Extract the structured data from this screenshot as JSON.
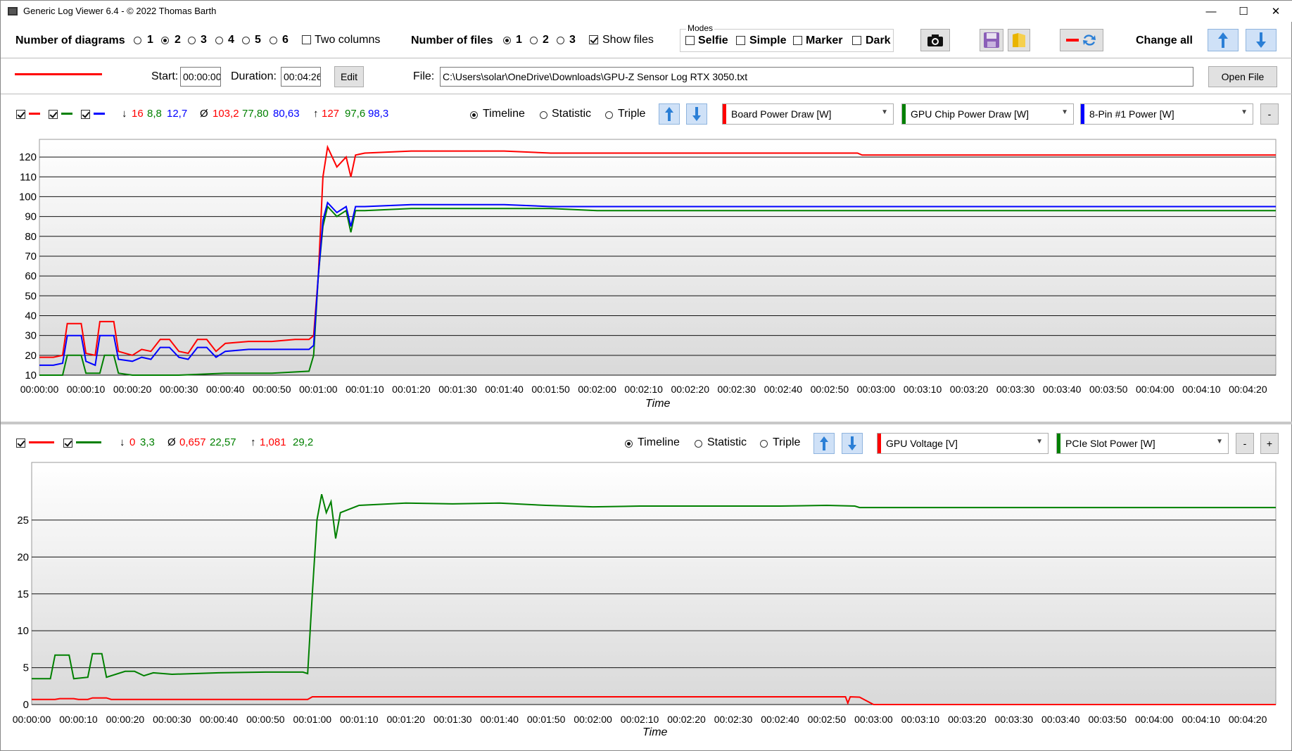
{
  "window": {
    "title": "Generic Log Viewer 6.4 - © 2022 Thomas Barth",
    "minimize": "—",
    "maximize": "☐",
    "close": "✕"
  },
  "toolbar": {
    "num_diagrams_label": "Number of diagrams",
    "diagram_options": [
      "1",
      "2",
      "3",
      "4",
      "5",
      "6"
    ],
    "diagram_selected": "2",
    "two_columns_label": "Two columns",
    "num_files_label": "Number of files",
    "file_options": [
      "1",
      "2",
      "3"
    ],
    "file_selected": "1",
    "show_files_label": "Show files",
    "modes_title": "Modes",
    "modes": [
      "Selfie",
      "Simple",
      "Marker",
      "Dark"
    ],
    "change_all_label": "Change all"
  },
  "file_row": {
    "start_label": "Start:",
    "start_value": "00:00:00",
    "duration_label": "Duration:",
    "duration_value": "00:04:26",
    "edit_label": "Edit",
    "file_label": "File:",
    "file_path": "C:\\Users\\solar\\OneDrive\\Downloads\\GPU-Z Sensor Log RTX 3050.txt",
    "open_file_label": "Open File",
    "line_color": "#ff0000"
  },
  "colors": {
    "red": "#ff0000",
    "green": "#008000",
    "blue": "#0000ff"
  },
  "diagram1": {
    "stats_min": [
      "16",
      "8,8",
      "12,7"
    ],
    "stats_avg": [
      "103,2",
      "77,80",
      "80,63"
    ],
    "stats_max": [
      "127",
      "97,6",
      "98,3"
    ],
    "min_icon": "↓",
    "avg_icon": "Ø",
    "max_icon": "↑",
    "view_modes": [
      "Timeline",
      "Statistic",
      "Triple"
    ],
    "view_selected": "Timeline",
    "sensors": [
      "Board Power Draw [W]",
      "GPU Chip Power Draw [W]",
      "8-Pin #1 Power [W]"
    ],
    "minus_label": "-",
    "xlabel": "Time"
  },
  "diagram2": {
    "stats_min": [
      "0",
      "3,3"
    ],
    "stats_avg": [
      "0,657",
      "22,57"
    ],
    "stats_max": [
      "1,081",
      "29,2"
    ],
    "min_icon": "↓",
    "avg_icon": "Ø",
    "max_icon": "↑",
    "view_modes": [
      "Timeline",
      "Statistic",
      "Triple"
    ],
    "view_selected": "Timeline",
    "sensors": [
      "GPU Voltage [V]",
      "PCIe Slot Power [W]"
    ],
    "minus_label": "-",
    "plus_label": "+",
    "xlabel": "Time"
  },
  "chart_data": [
    {
      "type": "line",
      "xlabel": "Time",
      "ylabel": "",
      "x_ticks": [
        "00:00:00",
        "00:00:10",
        "00:00:20",
        "00:00:30",
        "00:00:40",
        "00:00:50",
        "00:01:00",
        "00:01:10",
        "00:01:20",
        "00:01:30",
        "00:01:40",
        "00:01:50",
        "00:02:00",
        "00:02:10",
        "00:02:20",
        "00:02:30",
        "00:02:40",
        "00:02:50",
        "00:03:00",
        "00:03:10",
        "00:03:20",
        "00:03:30",
        "00:03:40",
        "00:03:50",
        "00:04:00",
        "00:04:10",
        "00:04:20"
      ],
      "y_ticks": [
        10,
        20,
        30,
        40,
        50,
        60,
        70,
        80,
        90,
        100,
        110,
        120
      ],
      "xlim_seconds": [
        0,
        266
      ],
      "ylim": [
        10,
        125
      ],
      "grid": true,
      "series": [
        {
          "name": "Board Power Draw [W]",
          "color": "#ff0000",
          "points": [
            [
              0,
              19
            ],
            [
              3,
              19
            ],
            [
              5,
              20
            ],
            [
              6,
              36
            ],
            [
              9,
              36
            ],
            [
              10,
              21
            ],
            [
              12,
              20
            ],
            [
              13,
              37
            ],
            [
              16,
              37
            ],
            [
              17,
              22
            ],
            [
              20,
              20
            ],
            [
              22,
              23
            ],
            [
              24,
              22
            ],
            [
              26,
              28
            ],
            [
              28,
              28
            ],
            [
              30,
              22
            ],
            [
              32,
              21
            ],
            [
              34,
              28
            ],
            [
              36,
              28
            ],
            [
              38,
              22
            ],
            [
              40,
              26
            ],
            [
              45,
              27
            ],
            [
              50,
              27
            ],
            [
              55,
              28
            ],
            [
              58,
              28
            ],
            [
              59,
              30
            ],
            [
              60,
              60
            ],
            [
              61,
              110
            ],
            [
              62,
              125
            ],
            [
              64,
              115
            ],
            [
              66,
              120
            ],
            [
              67,
              110
            ],
            [
              68,
              121
            ],
            [
              70,
              122
            ],
            [
              80,
              123
            ],
            [
              90,
              123
            ],
            [
              100,
              123
            ],
            [
              110,
              122
            ],
            [
              120,
              122
            ],
            [
              130,
              122
            ],
            [
              140,
              122
            ],
            [
              150,
              122
            ],
            [
              160,
              122
            ],
            [
              170,
              122
            ],
            [
              176,
              122
            ],
            [
              177,
              121
            ],
            [
              266,
              121
            ]
          ]
        },
        {
          "name": "GPU Chip Power Draw [W]",
          "color": "#008000",
          "points": [
            [
              0,
              10
            ],
            [
              5,
              10
            ],
            [
              6,
              20
            ],
            [
              9,
              20
            ],
            [
              10,
              11
            ],
            [
              13,
              11
            ],
            [
              14,
              20
            ],
            [
              16,
              20
            ],
            [
              17,
              11
            ],
            [
              20,
              10
            ],
            [
              30,
              10
            ],
            [
              40,
              11
            ],
            [
              50,
              11
            ],
            [
              58,
              12
            ],
            [
              59,
              20
            ],
            [
              60,
              60
            ],
            [
              61,
              85
            ],
            [
              62,
              95
            ],
            [
              64,
              90
            ],
            [
              66,
              93
            ],
            [
              67,
              82
            ],
            [
              68,
              93
            ],
            [
              70,
              93
            ],
            [
              80,
              94
            ],
            [
              90,
              94
            ],
            [
              100,
              94
            ],
            [
              110,
              94
            ],
            [
              120,
              93
            ],
            [
              130,
              93
            ],
            [
              140,
              93
            ],
            [
              150,
              93
            ],
            [
              160,
              93
            ],
            [
              170,
              93
            ],
            [
              176,
              93
            ],
            [
              177,
              93
            ],
            [
              266,
              93
            ]
          ]
        },
        {
          "name": "8-Pin #1 Power [W]",
          "color": "#0000ff",
          "points": [
            [
              0,
              15
            ],
            [
              3,
              15
            ],
            [
              5,
              16
            ],
            [
              6,
              30
            ],
            [
              9,
              30
            ],
            [
              10,
              17
            ],
            [
              12,
              15
            ],
            [
              13,
              30
            ],
            [
              16,
              30
            ],
            [
              17,
              18
            ],
            [
              20,
              17
            ],
            [
              22,
              19
            ],
            [
              24,
              18
            ],
            [
              26,
              24
            ],
            [
              28,
              24
            ],
            [
              30,
              19
            ],
            [
              32,
              18
            ],
            [
              34,
              24
            ],
            [
              36,
              24
            ],
            [
              38,
              19
            ],
            [
              40,
              22
            ],
            [
              45,
              23
            ],
            [
              50,
              23
            ],
            [
              55,
              23
            ],
            [
              58,
              23
            ],
            [
              59,
              25
            ],
            [
              60,
              60
            ],
            [
              61,
              88
            ],
            [
              62,
              97
            ],
            [
              64,
              92
            ],
            [
              66,
              95
            ],
            [
              67,
              85
            ],
            [
              68,
              95
            ],
            [
              70,
              95
            ],
            [
              80,
              96
            ],
            [
              90,
              96
            ],
            [
              100,
              96
            ],
            [
              110,
              95
            ],
            [
              120,
              95
            ],
            [
              130,
              95
            ],
            [
              140,
              95
            ],
            [
              150,
              95
            ],
            [
              160,
              95
            ],
            [
              170,
              95
            ],
            [
              176,
              95
            ],
            [
              177,
              95
            ],
            [
              266,
              95
            ]
          ]
        }
      ]
    },
    {
      "type": "line",
      "xlabel": "Time",
      "ylabel": "",
      "x_ticks": [
        "00:00:00",
        "00:00:10",
        "00:00:20",
        "00:00:30",
        "00:00:40",
        "00:00:50",
        "00:01:00",
        "00:01:10",
        "00:01:20",
        "00:01:30",
        "00:01:40",
        "00:01:50",
        "00:02:00",
        "00:02:10",
        "00:02:20",
        "00:02:30",
        "00:02:40",
        "00:02:50",
        "00:03:00",
        "00:03:10",
        "00:03:20",
        "00:03:30",
        "00:03:40",
        "00:03:50",
        "00:04:00",
        "00:04:10",
        "00:04:20"
      ],
      "y_ticks": [
        0,
        5,
        10,
        15,
        20,
        25
      ],
      "xlim_seconds": [
        0,
        266
      ],
      "ylim": [
        0,
        29
      ],
      "grid": true,
      "series": [
        {
          "name": "GPU Voltage [V]",
          "color": "#ff0000",
          "points": [
            [
              0,
              0.7
            ],
            [
              5,
              0.7
            ],
            [
              6,
              0.8
            ],
            [
              9,
              0.8
            ],
            [
              10,
              0.7
            ],
            [
              12,
              0.7
            ],
            [
              13,
              0.9
            ],
            [
              16,
              0.9
            ],
            [
              17,
              0.7
            ],
            [
              30,
              0.7
            ],
            [
              59,
              0.7
            ],
            [
              60,
              1.05
            ],
            [
              90,
              1.05
            ],
            [
              150,
              1.05
            ],
            [
              174,
              1.05
            ],
            [
              174.5,
              0.2
            ],
            [
              175,
              1.05
            ],
            [
              177,
              1.0
            ],
            [
              180,
              0
            ],
            [
              266,
              0
            ]
          ]
        },
        {
          "name": "PCIe Slot Power [W]",
          "color": "#008000",
          "points": [
            [
              0,
              3.5
            ],
            [
              4,
              3.5
            ],
            [
              5,
              6.7
            ],
            [
              8,
              6.7
            ],
            [
              9,
              3.5
            ],
            [
              12,
              3.7
            ],
            [
              13,
              6.9
            ],
            [
              15,
              6.9
            ],
            [
              16,
              3.7
            ],
            [
              20,
              4.5
            ],
            [
              22,
              4.5
            ],
            [
              24,
              3.9
            ],
            [
              26,
              4.3
            ],
            [
              30,
              4.1
            ],
            [
              40,
              4.3
            ],
            [
              50,
              4.4
            ],
            [
              58,
              4.4
            ],
            [
              59,
              4.2
            ],
            [
              60,
              15
            ],
            [
              61,
              25
            ],
            [
              62,
              28.5
            ],
            [
              63,
              26
            ],
            [
              64,
              27.5
            ],
            [
              65,
              22.5
            ],
            [
              66,
              26
            ],
            [
              68,
              26.5
            ],
            [
              70,
              27
            ],
            [
              80,
              27.3
            ],
            [
              90,
              27.2
            ],
            [
              100,
              27.3
            ],
            [
              110,
              27
            ],
            [
              120,
              26.8
            ],
            [
              130,
              26.9
            ],
            [
              140,
              26.9
            ],
            [
              150,
              26.9
            ],
            [
              160,
              26.9
            ],
            [
              170,
              27
            ],
            [
              176,
              26.9
            ],
            [
              177,
              26.7
            ],
            [
              266,
              26.7
            ]
          ]
        }
      ]
    }
  ]
}
